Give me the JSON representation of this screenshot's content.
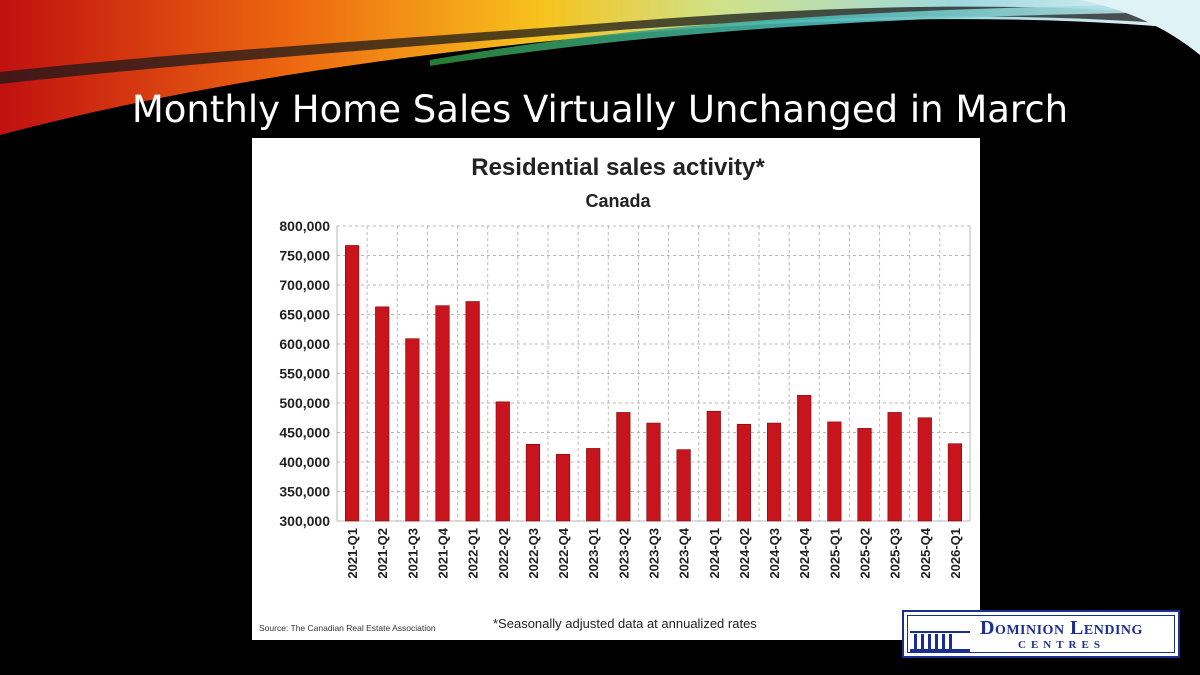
{
  "slide": {
    "title": "Monthly Home Sales Virtually Unchanged in March"
  },
  "chart_data": {
    "type": "bar",
    "title": "Residential sales activity*",
    "subtitle": "Canada",
    "categories": [
      "2021-Q1",
      "2021-Q2",
      "2021-Q3",
      "2021-Q4",
      "2022-Q1",
      "2022-Q2",
      "2022-Q3",
      "2022-Q4",
      "2023-Q1",
      "2023-Q2",
      "2023-Q3",
      "2023-Q4",
      "2024-Q1",
      "2024-Q2",
      "2024-Q3",
      "2024-Q4",
      "2025-Q1",
      "2025-Q2",
      "2025-Q3",
      "2025-Q4",
      "2026-Q1"
    ],
    "values": [
      767000,
      663000,
      609000,
      665000,
      672000,
      502000,
      430000,
      413000,
      423000,
      484000,
      466000,
      421000,
      486000,
      464000,
      466000,
      513000,
      468000,
      457000,
      484000,
      475000,
      431000
    ],
    "ylim": [
      300000,
      800000
    ],
    "yticks": [
      "300,000",
      "350,000",
      "400,000",
      "450,000",
      "500,000",
      "550,000",
      "600,000",
      "650,000",
      "700,000",
      "750,000",
      "800,000"
    ],
    "xlabel": "",
    "ylabel": "",
    "grid": true,
    "bar_color": "#c8141c",
    "source": "Source: The Canadian Real Estate Association",
    "note": "*Seasonally adjusted data at annualized rates"
  },
  "logo": {
    "line1": "Dominion Lending",
    "line2": "CENTRES",
    "color": "#1b2f8f"
  }
}
